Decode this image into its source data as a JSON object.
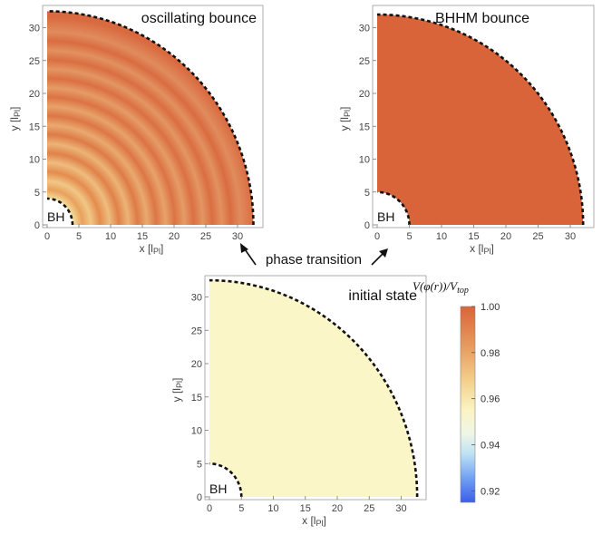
{
  "panels": [
    {
      "id": "oscillating",
      "title": "oscillating bounce",
      "bh_label": "BH",
      "xlabel": "x [l",
      "ylabel": "y [l",
      "label_sub": "Pl",
      "label_close": "]",
      "xticks": [
        "0",
        "5",
        "10",
        "15",
        "20",
        "25",
        "30"
      ],
      "yticks": [
        "0",
        "5",
        "10",
        "15",
        "20",
        "25",
        "30"
      ],
      "bh_radius": 4,
      "outer_radius": 32.5,
      "fill": "oscillating"
    },
    {
      "id": "bhhm",
      "title": "BHHM bounce",
      "bh_label": "BH",
      "xlabel": "x [l",
      "ylabel": "y [l",
      "label_sub": "Pl",
      "label_close": "]",
      "xticks": [
        "0",
        "5",
        "10",
        "15",
        "20",
        "25",
        "30"
      ],
      "yticks": [
        "0",
        "5",
        "10",
        "15",
        "20",
        "25",
        "30"
      ],
      "bh_radius": 5,
      "outer_radius": 32,
      "fill_color": "#d9643a"
    },
    {
      "id": "initial",
      "title": "initial state",
      "bh_label": "BH",
      "xlabel": "x [l",
      "ylabel": "y [l",
      "label_sub": "Pl",
      "label_close": "]",
      "xticks": [
        "0",
        "5",
        "10",
        "15",
        "20",
        "25",
        "30"
      ],
      "yticks": [
        "0",
        "5",
        "10",
        "15",
        "20",
        "25",
        "30"
      ],
      "bh_radius": 5,
      "outer_radius": 32.5,
      "fill_color": "#fbf6c8"
    }
  ],
  "transition_label": "phase transition",
  "colorbar": {
    "label": "V(φ(r))/V",
    "label_sub": "top",
    "ticks": [
      "1.00",
      "0.98",
      "0.96",
      "0.94",
      "0.92"
    ],
    "tick_values": [
      1.0,
      0.98,
      0.96,
      0.94,
      0.92
    ],
    "min": 0.915,
    "max": 1.0
  }
}
